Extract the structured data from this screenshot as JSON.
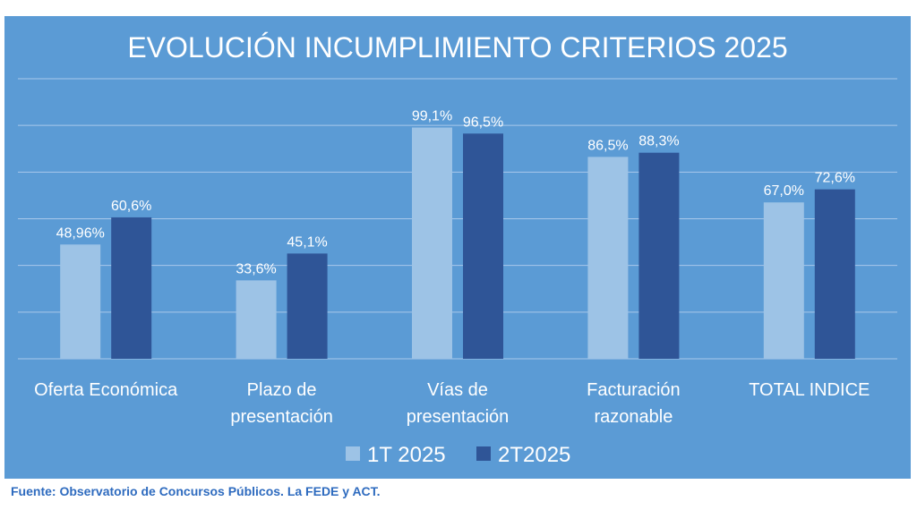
{
  "source": "Fuente: Observatorio de Concursos Públicos. La FEDE y ACT.",
  "colors": {
    "background": "#5b9bd5",
    "series1": "#9dc3e6",
    "series2": "#2f5597",
    "text": "#ffffff",
    "source_text": "#2e6bbf"
  },
  "chart_data": {
    "type": "bar",
    "title": "EVOLUCIÓN INCUMPLIMIENTO CRITERIOS 2025",
    "categories": [
      [
        "Oferta Económica"
      ],
      [
        "Plazo de",
        "presentación"
      ],
      [
        "Vías de",
        "presentación"
      ],
      [
        "Facturación",
        "razonable"
      ],
      [
        "TOTAL INDICE"
      ]
    ],
    "series": [
      {
        "name": "1T 2025",
        "values": [
          48.96,
          33.6,
          99.1,
          86.5,
          67.0
        ],
        "labels": [
          "48,96%",
          "33,6%",
          "99,1%",
          "86,5%",
          "67,0%"
        ]
      },
      {
        "name": "2T2025",
        "values": [
          60.6,
          45.1,
          96.5,
          88.3,
          72.6
        ],
        "labels": [
          "60,6%",
          "45,1%",
          "96,5%",
          "88,3%",
          "72,6%"
        ]
      }
    ],
    "ylim": [
      0,
      120
    ],
    "grid": true,
    "legend": "bottom"
  }
}
